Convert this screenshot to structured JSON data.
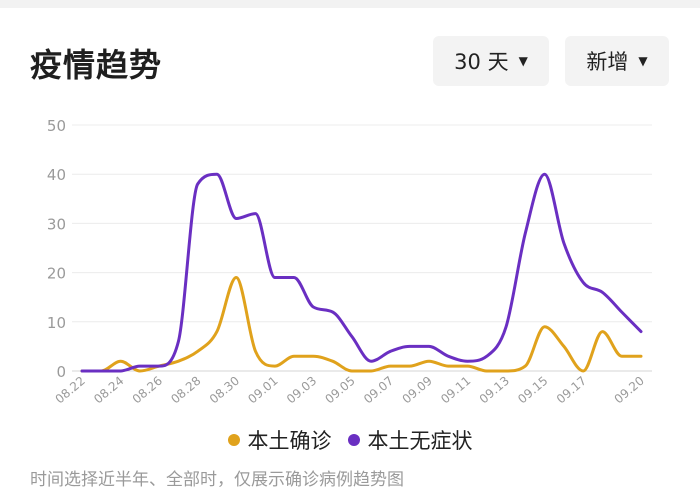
{
  "header": {
    "title": "疫情趋势"
  },
  "controls": {
    "range_label": "30 天",
    "metric_label": "新增"
  },
  "colors": {
    "local_confirmed": "#E0A21C",
    "local_asymptomatic": "#6A2FC2"
  },
  "footnote": "时间选择近半年、全部时，仅展示确诊病例趋势图",
  "chart_data": {
    "type": "line",
    "title": "",
    "xlabel": "",
    "ylabel": "",
    "ylim": [
      0,
      50
    ],
    "yticks": [
      0,
      10,
      20,
      30,
      40,
      50
    ],
    "grid": true,
    "legend_position": "bottom",
    "x": [
      "08.22",
      "08.23",
      "08.24",
      "08.25",
      "08.26",
      "08.27",
      "08.28",
      "08.29",
      "08.30",
      "08.31",
      "09.01",
      "09.02",
      "09.03",
      "09.04",
      "09.05",
      "09.06",
      "09.07",
      "09.08",
      "09.09",
      "09.10",
      "09.11",
      "09.12",
      "09.13",
      "09.14",
      "09.15",
      "09.16",
      "09.17",
      "09.18",
      "09.19",
      "09.20"
    ],
    "xticks": [
      "08.22",
      "08.24",
      "08.26",
      "08.28",
      "08.30",
      "09.01",
      "09.03",
      "09.05",
      "09.07",
      "09.09",
      "09.11",
      "09.13",
      "09.15",
      "09.17",
      "09.20"
    ],
    "series": [
      {
        "name": "本土确诊",
        "color": "#E0A21C",
        "values": [
          0,
          0,
          2,
          0,
          1,
          2,
          4,
          8,
          19,
          4,
          1,
          3,
          3,
          2,
          0,
          0,
          1,
          1,
          2,
          1,
          1,
          0,
          0,
          1,
          9,
          5,
          0,
          8,
          3,
          3
        ]
      },
      {
        "name": "本土无症状",
        "color": "#6A2FC2",
        "values": [
          0,
          0,
          0,
          1,
          1,
          6,
          38,
          40,
          31,
          32,
          19,
          19,
          13,
          12,
          7,
          2,
          4,
          5,
          5,
          3,
          2,
          3,
          9,
          28,
          40,
          26,
          18,
          16,
          12,
          8
        ]
      }
    ]
  }
}
